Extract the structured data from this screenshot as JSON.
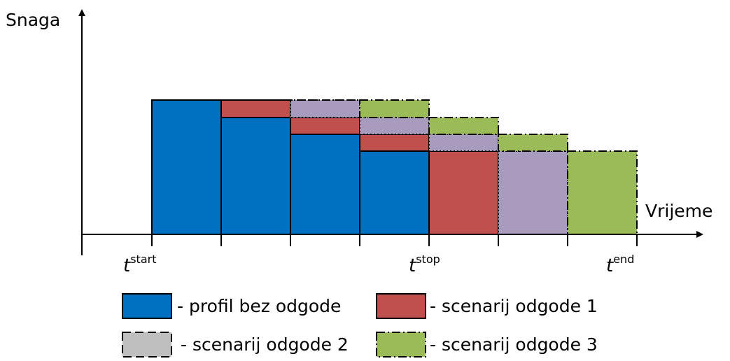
{
  "axes": {
    "y_label": "Snaga",
    "x_label": "Vrijeme"
  },
  "ticks": [
    {
      "base": "t",
      "sup": "start"
    },
    {
      "base": "t",
      "sup": "stop"
    },
    {
      "base": "t",
      "sup": "end"
    }
  ],
  "legend": [
    "- profil bez odgode",
    "- scenarij odgode 1",
    "- scenarij odgode 2",
    "- scenarij odgode 3"
  ]
}
